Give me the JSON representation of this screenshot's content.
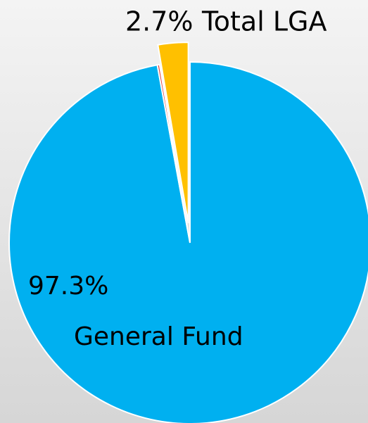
{
  "chart_data": {
    "type": "pie",
    "categories": [
      "General Fund",
      null,
      "Total LGA"
    ],
    "values": [
      97.3,
      0.2,
      2.7
    ],
    "value_labels": [
      "97.3%",
      null,
      "2.7%"
    ],
    "colors": [
      "#00b0f0",
      "#e0403a",
      "#ffc000"
    ],
    "exploded": [
      false,
      false,
      true
    ]
  }
}
